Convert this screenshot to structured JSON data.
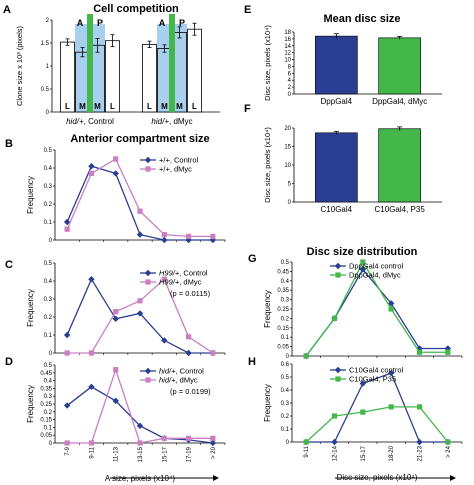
{
  "colors": {
    "blue": "#2a3f94",
    "pink": "#c97fc1",
    "green": "#43b749",
    "lightblue": "#a8d0ee",
    "dark": "#1f1f1f"
  },
  "panel_letters": {
    "A": "A",
    "B": "B",
    "C": "C",
    "D": "D",
    "E": "E",
    "F": "F",
    "G": "G",
    "H": "H"
  },
  "section_titles": {
    "cell_competition": "Cell competition",
    "anterior": "Anterior compartment size",
    "mean_disc": "Mean disc size",
    "disc_dist": "Disc size distribution"
  },
  "chart_data": [
    {
      "id": "A",
      "type": "bar",
      "title": "Cell competition",
      "ylabel": "Clone size x 10³ (pixels)",
      "yticks": [
        "0",
        "0.5",
        "1",
        "1.5",
        "2"
      ],
      "ylim": [
        0,
        2
      ],
      "groups": [
        {
          "label": "hid/+, Control",
          "label_italic": "hid/+",
          "label_rest": ", Control",
          "top_labels": [
            "A",
            "P"
          ],
          "bars": [
            {
              "cat": "L",
              "value": 1.52,
              "err": 0.07,
              "fill": "white"
            },
            {
              "cat": "M",
              "value": 1.3,
              "err": 0.1,
              "fill": "lightblue"
            },
            {
              "cat": "M",
              "value": 1.45,
              "err": 0.15,
              "fill": "lightblue"
            },
            {
              "cat": "L",
              "value": 1.55,
              "err": 0.13,
              "fill": "white"
            }
          ]
        },
        {
          "label": "hid/+, dMyc",
          "label_italic": "hid/+",
          "label_rest": ", dMyc",
          "top_labels": [
            "A",
            "P"
          ],
          "bars": [
            {
              "cat": "L",
              "value": 1.47,
              "err": 0.07,
              "fill": "white"
            },
            {
              "cat": "M",
              "value": 1.38,
              "err": 0.08,
              "fill": "lightblue"
            },
            {
              "cat": "M",
              "value": 1.73,
              "err": 0.12,
              "fill": "lightblue"
            },
            {
              "cat": "L",
              "value": 1.8,
              "err": 0.13,
              "fill": "white"
            }
          ]
        }
      ]
    },
    {
      "id": "B",
      "type": "line",
      "title": "Anterior compartment size",
      "ylabel": "Frequency",
      "yticks": [
        "0",
        "0.1",
        "0.2",
        "0.3",
        "0.4",
        "0.5"
      ],
      "ylim": [
        0,
        0.5
      ],
      "categories": [
        "7-9",
        "9-11",
        "11-13",
        "13-15",
        "15-17",
        "17-19",
        "> 20"
      ],
      "series": [
        {
          "name": "+/+, Control",
          "values": [
            0.1,
            0.41,
            0.37,
            0.03,
            0.0,
            0.0,
            0.0
          ]
        },
        {
          "name": "+/+, dMyc",
          "values": [
            0.06,
            0.37,
            0.45,
            0.16,
            0.03,
            0.02,
            0.02
          ]
        }
      ]
    },
    {
      "id": "C",
      "type": "line",
      "ylabel": "Frequency",
      "annotation": "(p = 0.0115)",
      "yticks": [
        "0",
        "0.1",
        "0.2",
        "0.3",
        "0.4",
        "0.5"
      ],
      "ylim": [
        0,
        0.5
      ],
      "categories": [
        "7-9",
        "9-11",
        "11-13",
        "13-15",
        "15-17",
        "17-19",
        "> 20"
      ],
      "series": [
        {
          "name": "H99/+, Control",
          "name_italic": "H99/+",
          "name_rest": ", Control",
          "values": [
            0.1,
            0.41,
            0.19,
            0.22,
            0.07,
            0.0,
            0.0
          ]
        },
        {
          "name": "H99/+, dMyc",
          "name_italic": "H99/+",
          "name_rest": ", dMyc",
          "values": [
            0.0,
            0.0,
            0.23,
            0.29,
            0.41,
            0.09,
            0.0
          ]
        }
      ]
    },
    {
      "id": "D",
      "type": "line",
      "ylabel": "Frequency",
      "annotation": "(p = 0.0199)",
      "xlabel": "A size, pixels (x10⁴)",
      "yticks": [
        "0",
        "0.05",
        "0.1",
        "0.15",
        "0.2",
        "0.25",
        "0.3",
        "0.35",
        "0.4",
        "0.45",
        "0.5"
      ],
      "ylim": [
        0,
        0.5
      ],
      "categories": [
        "7-9",
        "9-11",
        "11-13",
        "13-15",
        "15-17",
        "17-19",
        "> 20"
      ],
      "series": [
        {
          "name": "hid/+, Control",
          "name_italic": "hid/+",
          "name_rest": ", Control",
          "values": [
            0.24,
            0.36,
            0.27,
            0.11,
            0.03,
            0.02,
            0.0
          ]
        },
        {
          "name": "hid/+, dMyc",
          "name_italic": "hid/+",
          "name_rest": ", dMyc",
          "values": [
            0.0,
            0.0,
            0.47,
            0.0,
            0.03,
            0.03,
            0.03
          ]
        }
      ]
    },
    {
      "id": "E",
      "type": "bar",
      "title": "Mean disc size",
      "ylabel": "Disc size, pixels (x10⁴)",
      "yticks": [
        "0",
        "2",
        "4",
        "6",
        "8",
        "10",
        "12",
        "14",
        "16",
        "18"
      ],
      "ylim": [
        0,
        18
      ],
      "categories": [
        "DppGal4",
        "DppGal4, dMyc"
      ],
      "values": [
        16.8,
        16.3
      ],
      "errors": [
        0.7,
        0.4
      ],
      "bar_colors": [
        "blue",
        "green"
      ]
    },
    {
      "id": "F",
      "type": "bar",
      "ylabel": "Disc size, pixels (x10⁴)",
      "yticks": [
        "0",
        "5",
        "10",
        "15",
        "20"
      ],
      "ylim": [
        0,
        20
      ],
      "categories": [
        "C10Gal4",
        "C10Gal4, P35"
      ],
      "values": [
        18.7,
        19.8
      ],
      "errors": [
        0.4,
        0.5
      ],
      "bar_colors": [
        "blue",
        "green"
      ]
    },
    {
      "id": "G",
      "type": "line",
      "title": "Disc size distribution",
      "ylabel": "Frequency",
      "yticks": [
        "0",
        "0.05",
        "0.1",
        "0.15",
        "0.2",
        "0.25",
        "0.3",
        "0.35",
        "0.4",
        "0.45",
        "0.5"
      ],
      "ylim": [
        0,
        0.5
      ],
      "categories": [
        "9-11",
        "12-14",
        "15-17",
        "18-20",
        "21-23",
        "> 24"
      ],
      "series": [
        {
          "name": "DppGal4 control",
          "values": [
            0.0,
            0.2,
            0.46,
            0.28,
            0.04,
            0.04
          ]
        },
        {
          "name": "DppGal4, dMyc",
          "values": [
            0.0,
            0.2,
            0.5,
            0.25,
            0.02,
            0.02
          ]
        }
      ]
    },
    {
      "id": "H",
      "type": "line",
      "ylabel": "Frequency",
      "xlabel": "Disc size, pixels (x10⁴)",
      "yticks": [
        "0",
        "0.1",
        "0.2",
        "0.3",
        "0.4",
        "0.5",
        "0.6"
      ],
      "ylim": [
        0,
        0.6
      ],
      "categories": [
        "9-11",
        "12-14",
        "15-17",
        "18-20",
        "21-23",
        "> 24"
      ],
      "series": [
        {
          "name": "C10Gal4 control",
          "values": [
            0.0,
            0.0,
            0.45,
            0.53,
            0.0,
            0.0
          ]
        },
        {
          "name": "C10Gal4, P35",
          "values": [
            0.0,
            0.2,
            0.23,
            0.27,
            0.27,
            0.0
          ]
        }
      ]
    }
  ]
}
